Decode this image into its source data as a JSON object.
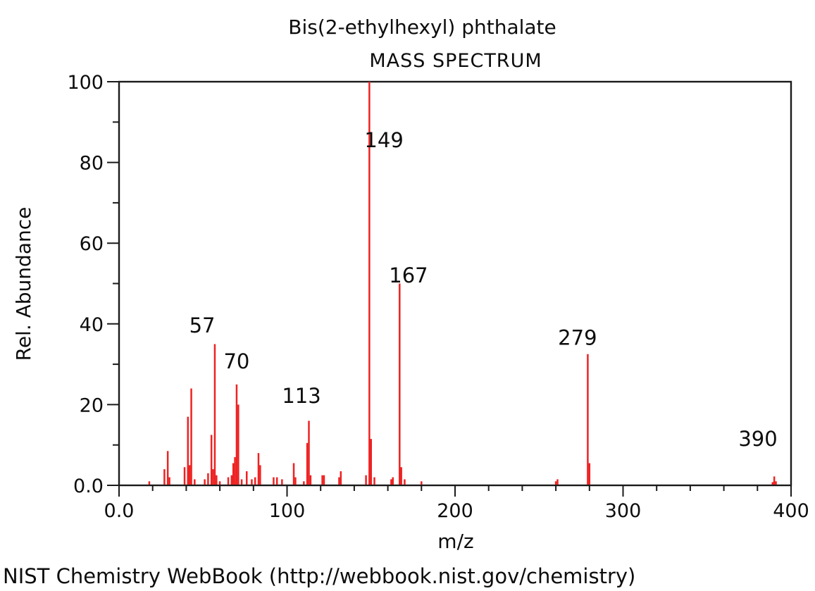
{
  "title": {
    "line1": "Bis(2-ethylhexyl) phthalate",
    "line2": "MASS SPECTRUM"
  },
  "footer": "NIST Chemistry WebBook (http://webbook.nist.gov/chemistry)",
  "chart_data": {
    "type": "bar",
    "title": "Bis(2-ethylhexyl) phthalate — MASS SPECTRUM",
    "xlabel": "m/z",
    "ylabel": "Rel. Abundance",
    "xlim": [
      0,
      400
    ],
    "ylim": [
      0,
      100
    ],
    "x_major_ticks": [
      0,
      100,
      200,
      300,
      400
    ],
    "x_major_labels": [
      "0.0",
      "100",
      "200",
      "300",
      "400"
    ],
    "x_minor_step": 20,
    "y_major_ticks": [
      0,
      20,
      40,
      60,
      80,
      100
    ],
    "y_major_labels": [
      "0.0",
      "20",
      "40",
      "60",
      "80",
      "100"
    ],
    "y_minor_step": 10,
    "grid": false,
    "legend": "none",
    "peak_color": "#ee2222",
    "axis_color": "#1a1a1a",
    "peaks": [
      [
        18,
        1.0
      ],
      [
        27,
        4.0
      ],
      [
        29,
        8.5
      ],
      [
        30,
        2.0
      ],
      [
        39,
        4.5
      ],
      [
        41,
        17.0
      ],
      [
        42,
        5.0
      ],
      [
        43,
        24.0
      ],
      [
        45,
        1.5
      ],
      [
        51,
        1.5
      ],
      [
        53,
        3.0
      ],
      [
        55,
        12.5
      ],
      [
        56,
        4.0
      ],
      [
        57,
        35.0
      ],
      [
        58,
        2.5
      ],
      [
        60,
        1.0
      ],
      [
        65,
        2.0
      ],
      [
        67,
        2.5
      ],
      [
        68,
        5.5
      ],
      [
        69,
        7.0
      ],
      [
        70,
        25.0
      ],
      [
        71,
        20.0
      ],
      [
        73,
        1.5
      ],
      [
        76,
        3.5
      ],
      [
        79,
        1.5
      ],
      [
        81,
        2.0
      ],
      [
        83,
        8.0
      ],
      [
        84,
        5.0
      ],
      [
        92,
        2.0
      ],
      [
        94,
        2.0
      ],
      [
        97,
        1.5
      ],
      [
        104,
        5.5
      ],
      [
        105,
        2.0
      ],
      [
        110,
        1.0
      ],
      [
        112,
        10.5
      ],
      [
        113,
        16.0
      ],
      [
        114,
        2.5
      ],
      [
        121,
        2.5
      ],
      [
        122,
        2.5
      ],
      [
        131,
        2.0
      ],
      [
        132,
        3.5
      ],
      [
        147,
        2.5
      ],
      [
        149,
        100.0
      ],
      [
        150,
        11.5
      ],
      [
        152,
        2.0
      ],
      [
        162,
        1.5
      ],
      [
        163,
        2.0
      ],
      [
        167,
        50.0
      ],
      [
        168,
        4.5
      ],
      [
        170,
        1.5
      ],
      [
        180,
        1.0
      ],
      [
        260,
        1.0
      ],
      [
        261,
        1.5
      ],
      [
        279,
        32.5
      ],
      [
        280,
        5.5
      ],
      [
        389,
        0.8
      ],
      [
        390,
        2.2
      ],
      [
        391,
        1.0
      ]
    ],
    "annotations": [
      {
        "text": "57",
        "mz": 49.5,
        "ab": 39.6
      },
      {
        "text": "70",
        "mz": 70.0,
        "ab": 30.7
      },
      {
        "text": "113",
        "mz": 108.6,
        "ab": 22.2
      },
      {
        "text": "149",
        "mz": 157.7,
        "ab": 85.5
      },
      {
        "text": "167",
        "mz": 172.3,
        "ab": 52.0
      },
      {
        "text": "279",
        "mz": 272.9,
        "ab": 36.6
      },
      {
        "text": "390",
        "mz": 380.3,
        "ab": 11.5
      }
    ]
  }
}
